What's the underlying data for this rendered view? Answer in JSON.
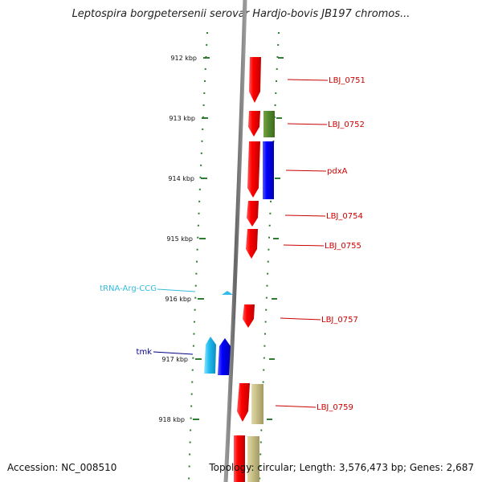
{
  "title": "Leptospira borgpetersenii serovar Hardjo-bovis JB197 chromos...",
  "footer": {
    "accession": "Accession: NC_008510",
    "stats": "Topology: circular; Length: 3,576,473 bp; Genes: 2,687"
  },
  "scale": [
    {
      "label": "912 kbp"
    },
    {
      "label": "913 kbp"
    },
    {
      "label": "914 kbp"
    },
    {
      "label": "915 kbp"
    },
    {
      "label": "916 kbp"
    },
    {
      "label": "917 kbp"
    },
    {
      "label": "918 kbp"
    }
  ],
  "labels": [
    {
      "text": "LBJ_0751",
      "color": "#cc0000"
    },
    {
      "text": "LBJ_0752",
      "color": "#cc0000"
    },
    {
      "text": "pdxA",
      "color": "#cc0000"
    },
    {
      "text": "LBJ_0754",
      "color": "#cc0000"
    },
    {
      "text": "LBJ_0755",
      "color": "#cc0000"
    },
    {
      "text": "LBJ_0757",
      "color": "#cc0000"
    },
    {
      "text": "LBJ_0759",
      "color": "#cc0000"
    },
    {
      "text": "tRNA-Arg-CCG",
      "color": "#33bbdd"
    },
    {
      "text": "tmk",
      "color": "#000088"
    }
  ]
}
